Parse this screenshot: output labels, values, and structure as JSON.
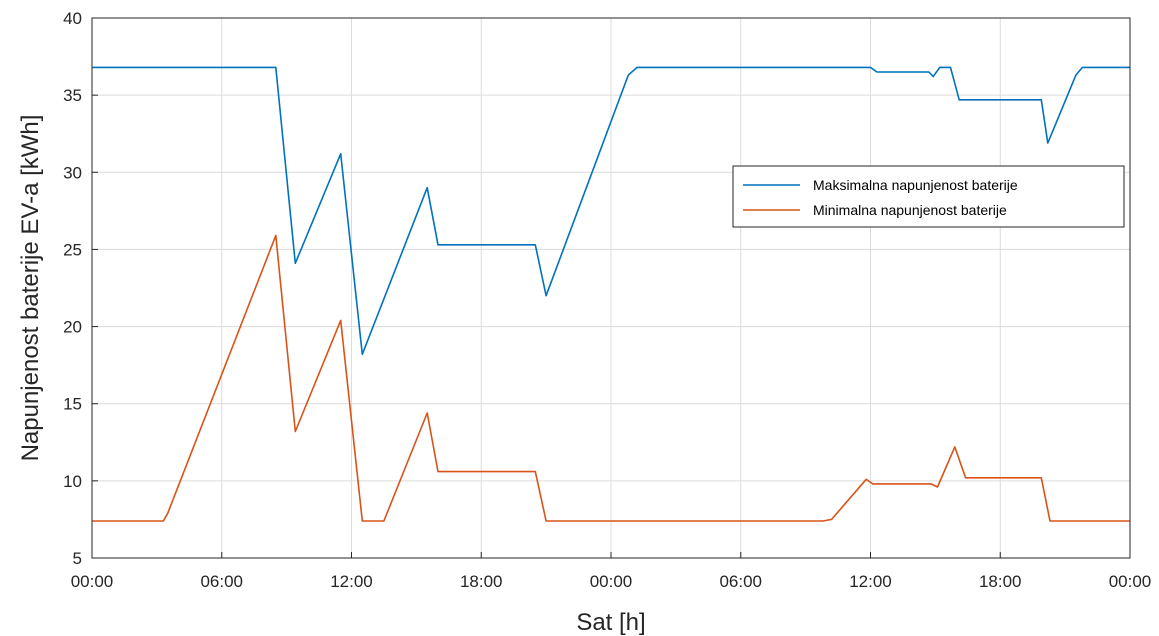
{
  "chart_data": {
    "type": "line",
    "xlabel": "Sat [h]",
    "ylabel": "Napunjenost baterije EV-a [kWh]",
    "xlim": [
      0,
      48
    ],
    "ylim": [
      5,
      40
    ],
    "grid": true,
    "legend_position": "right",
    "x_ticks": [
      {
        "value": 0,
        "label": "00:00"
      },
      {
        "value": 6,
        "label": "06:00"
      },
      {
        "value": 12,
        "label": "12:00"
      },
      {
        "value": 18,
        "label": "18:00"
      },
      {
        "value": 24,
        "label": "00:00"
      },
      {
        "value": 30,
        "label": "06:00"
      },
      {
        "value": 36,
        "label": "12:00"
      },
      {
        "value": 42,
        "label": "18:00"
      },
      {
        "value": 48,
        "label": "00:00"
      }
    ],
    "y_ticks": [
      5,
      10,
      15,
      20,
      25,
      30,
      35,
      40
    ],
    "series": [
      {
        "name": "Maksimalna napunjenost baterije",
        "color": "#0072BD",
        "points": [
          [
            0,
            36.8
          ],
          [
            8.5,
            36.8
          ],
          [
            9.4,
            24.1
          ],
          [
            11.5,
            31.2
          ],
          [
            12.5,
            18.2
          ],
          [
            15.5,
            29.0
          ],
          [
            16.0,
            25.3
          ],
          [
            20.5,
            25.3
          ],
          [
            21.0,
            22.0
          ],
          [
            24.8,
            36.3
          ],
          [
            25.2,
            36.8
          ],
          [
            36.0,
            36.8
          ],
          [
            36.3,
            36.5
          ],
          [
            38.7,
            36.5
          ],
          [
            38.9,
            36.2
          ],
          [
            39.2,
            36.8
          ],
          [
            39.7,
            36.8
          ],
          [
            40.1,
            34.7
          ],
          [
            43.9,
            34.7
          ],
          [
            44.2,
            31.9
          ],
          [
            45.5,
            36.3
          ],
          [
            45.8,
            36.8
          ],
          [
            48,
            36.8
          ]
        ]
      },
      {
        "name": "Minimalna napunjenost baterije",
        "color": "#D95319",
        "points": [
          [
            0,
            7.4
          ],
          [
            3.3,
            7.4
          ],
          [
            3.5,
            7.9
          ],
          [
            8.5,
            25.9
          ],
          [
            9.4,
            13.2
          ],
          [
            11.5,
            20.4
          ],
          [
            12.5,
            7.4
          ],
          [
            13.5,
            7.4
          ],
          [
            15.5,
            14.4
          ],
          [
            16.0,
            10.6
          ],
          [
            20.5,
            10.6
          ],
          [
            21.0,
            7.4
          ],
          [
            33.8,
            7.4
          ],
          [
            34.2,
            7.5
          ],
          [
            35.8,
            10.1
          ],
          [
            36.1,
            9.8
          ],
          [
            38.8,
            9.8
          ],
          [
            39.1,
            9.6
          ],
          [
            39.9,
            12.2
          ],
          [
            40.4,
            10.2
          ],
          [
            43.9,
            10.2
          ],
          [
            44.3,
            7.4
          ],
          [
            48,
            7.4
          ]
        ]
      }
    ]
  }
}
